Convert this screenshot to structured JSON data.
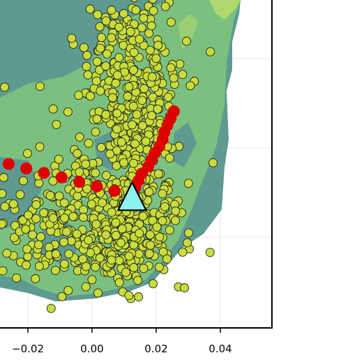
{
  "chart_data": {
    "type": "scatter",
    "title": "",
    "xlabel": "",
    "ylabel": "",
    "grid": true,
    "x_visible_range": [
      -0.028,
      0.056
    ],
    "xticks": [
      -0.02,
      0.0,
      0.02,
      0.04
    ],
    "xtick_labels": [
      "−0.02",
      "0.00",
      "0.02",
      "0.04"
    ],
    "colors": {
      "background_region": "#5f9a91",
      "mid_region": "#7cc07f",
      "high_region": "#b8dd6a",
      "points": "#c9dc3a",
      "point_edge": "#1e1e1e",
      "path_markers": "#dd0000",
      "triangle_marker": "#8ff0f0",
      "axes": "#000000",
      "grid": "#e6e6e6"
    },
    "path_markers": {
      "name": "",
      "x": [
        -0.026,
        -0.0205,
        -0.015,
        -0.0095,
        -0.004,
        0.0015,
        0.007,
        0.0135,
        0.0145,
        0.0155,
        0.0175,
        0.0185,
        0.0195,
        0.021,
        0.022,
        0.0225,
        0.0235,
        0.0245,
        0.0255
      ],
      "y": [
        0.0,
        -0.0014,
        -0.0028,
        -0.0042,
        -0.0056,
        -0.007,
        -0.0084,
        -0.0074,
        -0.0052,
        -0.003,
        -0.0008,
        0.0012,
        0.0033,
        0.0055,
        0.0076,
        0.0098,
        0.012,
        0.0142,
        0.0164
      ]
    },
    "triangle_marker": {
      "x": 0.0125,
      "y": -0.0105
    },
    "y_visible_range": [
      -0.0305,
      0.0225
    ]
  }
}
